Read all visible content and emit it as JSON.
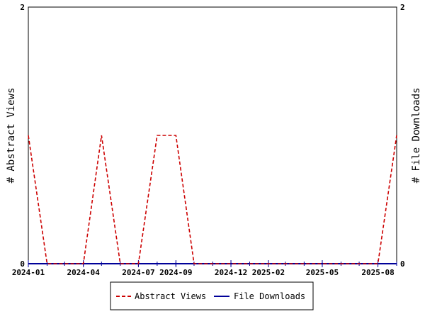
{
  "chart_data": {
    "type": "line",
    "x_ticks": [
      "2024-01",
      "2024-04",
      "2024-07",
      "2024-09",
      "2024-12",
      "2025-02",
      "2025-05",
      "2025-08"
    ],
    "x_range": [
      "2024-01-01",
      "2025-09-01"
    ],
    "y_left": {
      "label": "# Abstract Views",
      "range": [
        0,
        2
      ],
      "ticks": [
        "0",
        "2"
      ]
    },
    "y_right": {
      "label": "# File Downloads",
      "range": [
        0,
        2
      ],
      "ticks": [
        "0",
        "2"
      ]
    },
    "series": [
      {
        "name": "Abstract Views",
        "axis": "left",
        "color": "#cc0000",
        "style": "dashed",
        "points": [
          [
            "2024-01-01",
            1
          ],
          [
            "2024-02-01",
            0
          ],
          [
            "2024-03-01",
            0
          ],
          [
            "2024-04-01",
            0
          ],
          [
            "2024-05-01",
            1
          ],
          [
            "2024-06-01",
            0
          ],
          [
            "2024-07-01",
            0
          ],
          [
            "2024-08-01",
            1
          ],
          [
            "2024-09-01",
            1
          ],
          [
            "2024-10-01",
            0
          ],
          [
            "2024-11-01",
            0
          ],
          [
            "2024-12-01",
            0
          ],
          [
            "2025-01-01",
            0
          ],
          [
            "2025-02-01",
            0
          ],
          [
            "2025-03-01",
            0
          ],
          [
            "2025-04-01",
            0
          ],
          [
            "2025-05-01",
            0
          ],
          [
            "2025-06-01",
            0
          ],
          [
            "2025-07-01",
            0
          ],
          [
            "2025-08-01",
            0
          ],
          [
            "2025-09-01",
            1
          ]
        ]
      },
      {
        "name": "File Downloads",
        "axis": "right",
        "color": "#000099",
        "style": "solid",
        "points": [
          [
            "2024-01-01",
            0
          ],
          [
            "2024-02-01",
            0
          ],
          [
            "2024-03-01",
            0
          ],
          [
            "2024-04-01",
            0
          ],
          [
            "2024-05-01",
            0
          ],
          [
            "2024-06-01",
            0
          ],
          [
            "2024-07-01",
            0
          ],
          [
            "2024-08-01",
            0
          ],
          [
            "2024-09-01",
            0
          ],
          [
            "2024-10-01",
            0
          ],
          [
            "2024-11-01",
            0
          ],
          [
            "2024-12-01",
            0
          ],
          [
            "2025-01-01",
            0
          ],
          [
            "2025-02-01",
            0
          ],
          [
            "2025-03-01",
            0
          ],
          [
            "2025-04-01",
            0
          ],
          [
            "2025-05-01",
            0
          ],
          [
            "2025-06-01",
            0
          ],
          [
            "2025-07-01",
            0
          ],
          [
            "2025-08-01",
            0
          ],
          [
            "2025-09-01",
            0
          ]
        ]
      }
    ],
    "legend": {
      "placement": "bottom-center"
    },
    "grid": false
  }
}
